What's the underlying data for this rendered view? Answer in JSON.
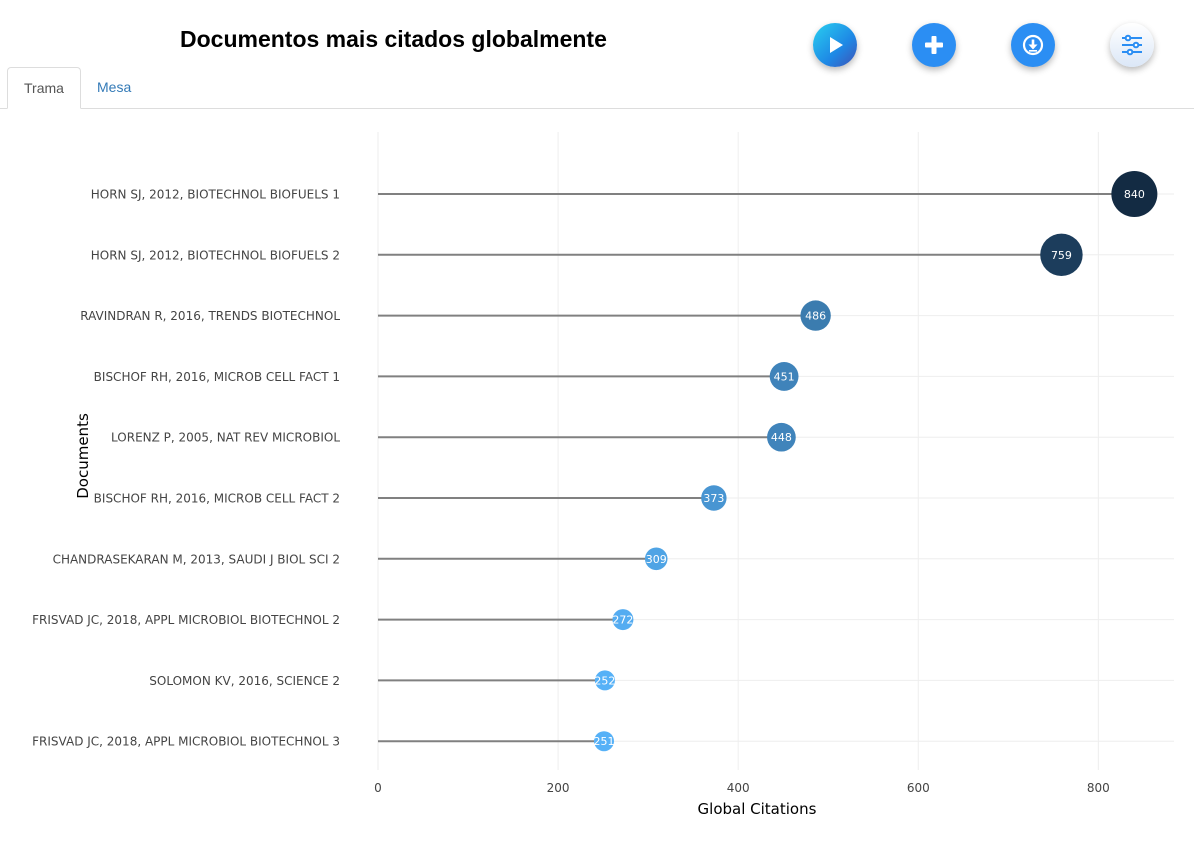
{
  "header": {
    "title": "Documentos mais citados globalmente"
  },
  "toolbar": {
    "play_icon": "play-icon",
    "add_icon": "plus-icon",
    "download_icon": "download-icon",
    "settings_icon": "sliders-icon"
  },
  "tabs": [
    {
      "label": "Trama",
      "active": true
    },
    {
      "label": "Mesa",
      "active": false
    }
  ],
  "colors": {
    "accent": "#1e88e5",
    "stem": "#808080",
    "grid": "#eeeeee"
  },
  "chart_data": {
    "type": "lollipop",
    "xlabel": "Global Citations",
    "ylabel": "Documents",
    "xlim": [
      0,
      884
    ],
    "xticks": [
      0,
      200,
      400,
      600,
      800
    ],
    "categories": [
      "HORN SJ, 2012, BIOTECHNOL BIOFUELS 1",
      "HORN SJ, 2012, BIOTECHNOL BIOFUELS 2",
      "RAVINDRAN R, 2016, TRENDS BIOTECHNOL",
      "BISCHOF RH, 2016, MICROB CELL FACT 1",
      "LORENZ P, 2005, NAT REV MICROBIOL",
      "BISCHOF RH, 2016, MICROB CELL FACT 2",
      "CHANDRASEKARAN M, 2013, SAUDI J BIOL SCI 2",
      "FRISVAD JC, 2018, APPL MICROBIOL BIOTECHNOL 2",
      "SOLOMON KV, 2016, SCIENCE 2",
      "FRISVAD JC, 2018, APPL MICROBIOL BIOTECHNOL 3"
    ],
    "values": [
      840,
      759,
      486,
      451,
      448,
      373,
      309,
      272,
      252,
      251
    ]
  }
}
